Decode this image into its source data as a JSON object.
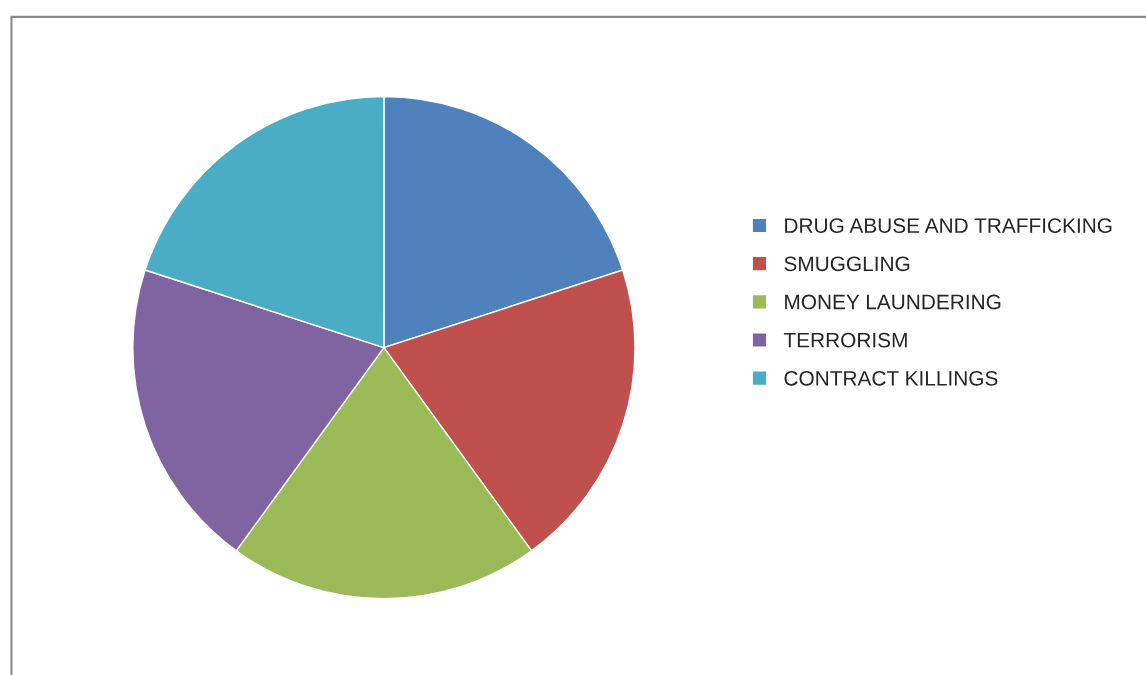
{
  "chart_data": {
    "type": "pie",
    "categories": [
      "DRUG ABUSE AND TRAFFICKING",
      "SMUGGLING",
      "MONEY LAUNDERING",
      "TERRORISM",
      "CONTRACT KILLINGS"
    ],
    "values": [
      20,
      20,
      20,
      20,
      20
    ],
    "colors": [
      "#4f81bd",
      "#c0504d",
      "#9bbb59",
      "#8064a2",
      "#4bacc6"
    ],
    "legend": "right"
  }
}
